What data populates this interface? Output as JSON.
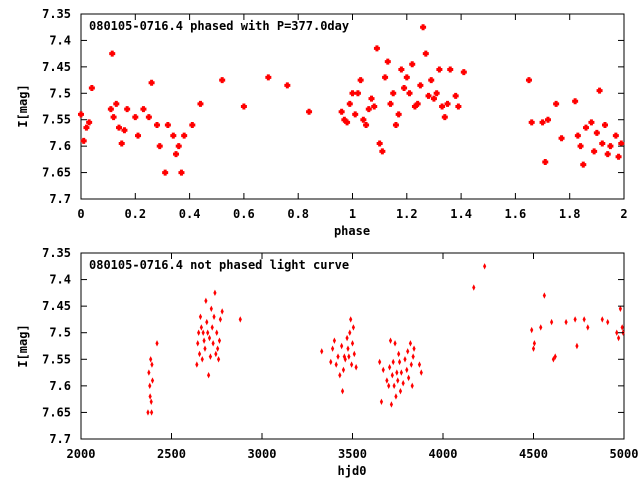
{
  "colors": {
    "marker": "#ff0000",
    "frame": "#000000",
    "background": "#ffffff"
  },
  "chart_data": [
    {
      "type": "scatter",
      "title": "080105-0716.4 phased with P=377.0day",
      "xlabel": "phase",
      "ylabel": "I[mag]",
      "xlim": [
        0,
        2
      ],
      "ylim": [
        7.35,
        7.7
      ],
      "y_inverted": true,
      "grid": false,
      "marker": "cross",
      "x_ticks": [
        0,
        0.2,
        0.4,
        0.6,
        0.8,
        1,
        1.2,
        1.4,
        1.6,
        1.8,
        2
      ],
      "x_tick_labels": [
        "0",
        "0.2",
        "0.4",
        "0.6",
        "0.8",
        "1",
        "1.2",
        "1.4",
        "1.6",
        "1.8",
        "2"
      ],
      "y_ticks": [
        7.35,
        7.4,
        7.45,
        7.5,
        7.55,
        7.6,
        7.65,
        7.7
      ],
      "y_tick_labels": [
        "7.35",
        "7.4",
        "7.45",
        "7.5",
        "7.55",
        "7.6",
        "7.65",
        "7.7"
      ],
      "points": [
        [
          0.0,
          7.54
        ],
        [
          0.01,
          7.59
        ],
        [
          0.02,
          7.565
        ],
        [
          0.03,
          7.555
        ],
        [
          0.04,
          7.49
        ],
        [
          0.11,
          7.53
        ],
        [
          0.115,
          7.425
        ],
        [
          0.12,
          7.545
        ],
        [
          0.13,
          7.52
        ],
        [
          0.14,
          7.565
        ],
        [
          0.15,
          7.595
        ],
        [
          0.16,
          7.57
        ],
        [
          0.17,
          7.53
        ],
        [
          0.2,
          7.545
        ],
        [
          0.21,
          7.58
        ],
        [
          0.23,
          7.53
        ],
        [
          0.25,
          7.545
        ],
        [
          0.26,
          7.48
        ],
        [
          0.28,
          7.56
        ],
        [
          0.29,
          7.6
        ],
        [
          0.31,
          7.65
        ],
        [
          0.32,
          7.56
        ],
        [
          0.34,
          7.58
        ],
        [
          0.35,
          7.615
        ],
        [
          0.36,
          7.6
        ],
        [
          0.37,
          7.65
        ],
        [
          0.38,
          7.58
        ],
        [
          0.41,
          7.56
        ],
        [
          0.44,
          7.52
        ],
        [
          0.52,
          7.475
        ],
        [
          0.6,
          7.525
        ],
        [
          0.69,
          7.47
        ],
        [
          0.76,
          7.485
        ],
        [
          0.84,
          7.535
        ],
        [
          0.96,
          7.535
        ],
        [
          0.97,
          7.55
        ],
        [
          0.98,
          7.555
        ],
        [
          0.99,
          7.52
        ],
        [
          1.0,
          7.5
        ],
        [
          1.01,
          7.54
        ],
        [
          1.02,
          7.5
        ],
        [
          1.03,
          7.475
        ],
        [
          1.04,
          7.55
        ],
        [
          1.05,
          7.56
        ],
        [
          1.06,
          7.53
        ],
        [
          1.07,
          7.51
        ],
        [
          1.08,
          7.525
        ],
        [
          1.09,
          7.415
        ],
        [
          1.1,
          7.595
        ],
        [
          1.11,
          7.61
        ],
        [
          1.12,
          7.47
        ],
        [
          1.13,
          7.44
        ],
        [
          1.14,
          7.52
        ],
        [
          1.15,
          7.5
        ],
        [
          1.16,
          7.56
        ],
        [
          1.17,
          7.54
        ],
        [
          1.18,
          7.455
        ],
        [
          1.19,
          7.49
        ],
        [
          1.2,
          7.47
        ],
        [
          1.21,
          7.5
        ],
        [
          1.22,
          7.445
        ],
        [
          1.23,
          7.525
        ],
        [
          1.24,
          7.52
        ],
        [
          1.25,
          7.485
        ],
        [
          1.26,
          7.375
        ],
        [
          1.27,
          7.425
        ],
        [
          1.28,
          7.505
        ],
        [
          1.29,
          7.475
        ],
        [
          1.3,
          7.51
        ],
        [
          1.31,
          7.5
        ],
        [
          1.32,
          7.455
        ],
        [
          1.33,
          7.525
        ],
        [
          1.34,
          7.545
        ],
        [
          1.35,
          7.52
        ],
        [
          1.36,
          7.455
        ],
        [
          1.38,
          7.505
        ],
        [
          1.39,
          7.525
        ],
        [
          1.41,
          7.46
        ],
        [
          1.65,
          7.475
        ],
        [
          1.66,
          7.555
        ],
        [
          1.7,
          7.555
        ],
        [
          1.71,
          7.63
        ],
        [
          1.72,
          7.55
        ],
        [
          1.75,
          7.52
        ],
        [
          1.77,
          7.585
        ],
        [
          1.82,
          7.515
        ],
        [
          1.83,
          7.58
        ],
        [
          1.84,
          7.6
        ],
        [
          1.85,
          7.635
        ],
        [
          1.86,
          7.565
        ],
        [
          1.88,
          7.555
        ],
        [
          1.89,
          7.61
        ],
        [
          1.9,
          7.575
        ],
        [
          1.91,
          7.495
        ],
        [
          1.92,
          7.595
        ],
        [
          1.93,
          7.56
        ],
        [
          1.94,
          7.615
        ],
        [
          1.95,
          7.6
        ],
        [
          1.97,
          7.58
        ],
        [
          1.98,
          7.62
        ],
        [
          1.99,
          7.595
        ]
      ]
    },
    {
      "type": "scatter",
      "title": "080105-0716.4 not phased light curve",
      "xlabel": "hjd0",
      "ylabel": "I[mag]",
      "xlim": [
        2000,
        5000
      ],
      "ylim": [
        7.35,
        7.7
      ],
      "y_inverted": true,
      "grid": false,
      "marker": "diamond",
      "x_ticks": [
        2000,
        2500,
        3000,
        3500,
        4000,
        4500,
        5000
      ],
      "x_tick_labels": [
        "2000",
        "2500",
        "3000",
        "3500",
        "4000",
        "4500",
        "5000"
      ],
      "y_ticks": [
        7.35,
        7.4,
        7.45,
        7.5,
        7.55,
        7.6,
        7.65,
        7.7
      ],
      "y_tick_labels": [
        "7.35",
        "7.4",
        "7.45",
        "7.5",
        "7.55",
        "7.6",
        "7.65",
        "7.7"
      ],
      "points": [
        [
          2370,
          7.65
        ],
        [
          2375,
          7.575
        ],
        [
          2380,
          7.6
        ],
        [
          2382,
          7.62
        ],
        [
          2385,
          7.55
        ],
        [
          2388,
          7.63
        ],
        [
          2390,
          7.65
        ],
        [
          2392,
          7.56
        ],
        [
          2395,
          7.59
        ],
        [
          2420,
          7.52
        ],
        [
          2640,
          7.56
        ],
        [
          2645,
          7.52
        ],
        [
          2650,
          7.5
        ],
        [
          2655,
          7.54
        ],
        [
          2660,
          7.47
        ],
        [
          2665,
          7.49
        ],
        [
          2670,
          7.55
        ],
        [
          2675,
          7.5
        ],
        [
          2680,
          7.515
        ],
        [
          2685,
          7.53
        ],
        [
          2690,
          7.44
        ],
        [
          2695,
          7.48
        ],
        [
          2700,
          7.5
        ],
        [
          2705,
          7.58
        ],
        [
          2710,
          7.51
        ],
        [
          2715,
          7.545
        ],
        [
          2720,
          7.455
        ],
        [
          2725,
          7.49
        ],
        [
          2730,
          7.52
        ],
        [
          2735,
          7.47
        ],
        [
          2740,
          7.425
        ],
        [
          2745,
          7.54
        ],
        [
          2750,
          7.5
        ],
        [
          2755,
          7.53
        ],
        [
          2760,
          7.55
        ],
        [
          2765,
          7.515
        ],
        [
          2770,
          7.475
        ],
        [
          2780,
          7.46
        ],
        [
          2880,
          7.475
        ],
        [
          3330,
          7.535
        ],
        [
          3380,
          7.555
        ],
        [
          3390,
          7.53
        ],
        [
          3400,
          7.515
        ],
        [
          3410,
          7.56
        ],
        [
          3420,
          7.545
        ],
        [
          3430,
          7.58
        ],
        [
          3440,
          7.525
        ],
        [
          3445,
          7.61
        ],
        [
          3450,
          7.57
        ],
        [
          3455,
          7.545
        ],
        [
          3460,
          7.55
        ],
        [
          3470,
          7.51
        ],
        [
          3475,
          7.53
        ],
        [
          3480,
          7.545
        ],
        [
          3485,
          7.5
        ],
        [
          3490,
          7.475
        ],
        [
          3495,
          7.56
        ],
        [
          3500,
          7.52
        ],
        [
          3505,
          7.49
        ],
        [
          3510,
          7.54
        ],
        [
          3520,
          7.565
        ],
        [
          3650,
          7.555
        ],
        [
          3660,
          7.63
        ],
        [
          3670,
          7.57
        ],
        [
          3690,
          7.59
        ],
        [
          3700,
          7.6
        ],
        [
          3705,
          7.565
        ],
        [
          3710,
          7.515
        ],
        [
          3715,
          7.635
        ],
        [
          3720,
          7.58
        ],
        [
          3725,
          7.555
        ],
        [
          3730,
          7.6
        ],
        [
          3735,
          7.52
        ],
        [
          3740,
          7.62
        ],
        [
          3745,
          7.575
        ],
        [
          3750,
          7.59
        ],
        [
          3755,
          7.54
        ],
        [
          3760,
          7.555
        ],
        [
          3765,
          7.61
        ],
        [
          3770,
          7.575
        ],
        [
          3780,
          7.595
        ],
        [
          3790,
          7.55
        ],
        [
          3800,
          7.57
        ],
        [
          3805,
          7.535
        ],
        [
          3810,
          7.585
        ],
        [
          3820,
          7.52
        ],
        [
          3825,
          7.56
        ],
        [
          3830,
          7.6
        ],
        [
          3835,
          7.545
        ],
        [
          3840,
          7.53
        ],
        [
          3870,
          7.56
        ],
        [
          3880,
          7.575
        ],
        [
          4170,
          7.415
        ],
        [
          4230,
          7.375
        ],
        [
          4490,
          7.495
        ],
        [
          4500,
          7.53
        ],
        [
          4505,
          7.52
        ],
        [
          4540,
          7.49
        ],
        [
          4560,
          7.43
        ],
        [
          4600,
          7.48
        ],
        [
          4610,
          7.55
        ],
        [
          4620,
          7.545
        ],
        [
          4680,
          7.48
        ],
        [
          4730,
          7.475
        ],
        [
          4740,
          7.525
        ],
        [
          4780,
          7.475
        ],
        [
          4800,
          7.49
        ],
        [
          4880,
          7.475
        ],
        [
          4910,
          7.48
        ],
        [
          4960,
          7.5
        ],
        [
          4970,
          7.51
        ],
        [
          4980,
          7.455
        ],
        [
          4990,
          7.49
        ],
        [
          4995,
          7.5
        ]
      ]
    }
  ]
}
